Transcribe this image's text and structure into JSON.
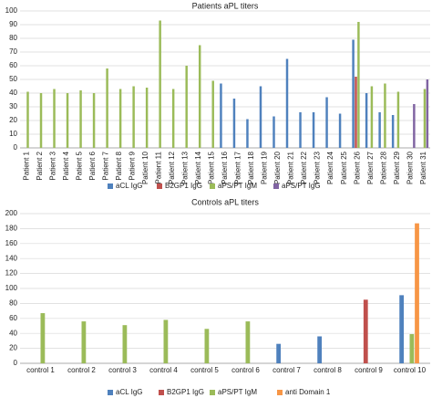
{
  "chart_data": [
    {
      "type": "bar",
      "title": "Patients aPL titers",
      "categories": [
        "Patient 1",
        "Patient 2",
        "Patient 3",
        "Patient 4",
        "Patient 5",
        "Patient 6",
        "Patient 7",
        "Patient 8",
        "Patient 9",
        "Patient 10",
        "Patient 11",
        "Patient 12",
        "Patient 13",
        "Patient 14",
        "Patient 15",
        "Patient 16",
        "Patient 17",
        "Patient 18",
        "Patient 19",
        "Patient 20",
        "Patient 21",
        "Patient 22",
        "Patient 23",
        "Patient 24",
        "Patient 25",
        "Patient 26",
        "Patient 27",
        "Patient 28",
        "Patient 29",
        "Patient 30",
        "Patient 31"
      ],
      "series": [
        {
          "name": "aCL IgG",
          "color": "#4f81bd",
          "values": [
            null,
            null,
            null,
            null,
            null,
            null,
            null,
            null,
            null,
            null,
            null,
            null,
            null,
            null,
            null,
            47,
            36,
            21,
            45,
            23,
            65,
            26,
            26,
            37,
            25,
            79,
            40,
            26,
            24,
            null,
            null
          ]
        },
        {
          "name": "B2GP1 IgG",
          "color": "#c0504d",
          "values": [
            null,
            null,
            null,
            null,
            null,
            null,
            null,
            null,
            null,
            null,
            null,
            null,
            null,
            null,
            null,
            null,
            null,
            null,
            null,
            null,
            null,
            null,
            null,
            null,
            null,
            52,
            null,
            null,
            null,
            null,
            null
          ]
        },
        {
          "name": "aPS/PT IgM",
          "color": "#9bbb59",
          "values": [
            41,
            40,
            43,
            40,
            42,
            40,
            58,
            43,
            45,
            44,
            93,
            43,
            60,
            75,
            49,
            null,
            null,
            null,
            null,
            null,
            null,
            null,
            null,
            null,
            null,
            92,
            45,
            47,
            41,
            null,
            43
          ]
        },
        {
          "name": "aPS/PT IgG",
          "color": "#8064a2",
          "values": [
            null,
            null,
            null,
            null,
            null,
            null,
            null,
            null,
            null,
            null,
            null,
            null,
            null,
            null,
            null,
            null,
            null,
            null,
            null,
            null,
            null,
            null,
            null,
            null,
            null,
            null,
            null,
            null,
            null,
            32,
            50
          ]
        }
      ],
      "ylim": [
        0,
        100
      ],
      "yticks": [
        0,
        10,
        20,
        30,
        40,
        50,
        60,
        70,
        80,
        90,
        100
      ],
      "grid": true,
      "legend": "bottom"
    },
    {
      "type": "bar",
      "title": "Controls aPL  titers",
      "categories": [
        "control 1",
        "control 2",
        "control 3",
        "control 4",
        "control 5",
        "control 6",
        "control 7",
        "control 8",
        "control 9",
        "control 10"
      ],
      "series": [
        {
          "name": "aCL IgG",
          "color": "#4f81bd",
          "values": [
            null,
            null,
            null,
            null,
            null,
            null,
            26,
            36,
            null,
            91
          ]
        },
        {
          "name": "B2GP1 IgG",
          "color": "#c0504d",
          "values": [
            null,
            null,
            null,
            null,
            null,
            null,
            null,
            null,
            85,
            null
          ]
        },
        {
          "name": "aPS/PT IgM",
          "color": "#9bbb59",
          "values": [
            67,
            56,
            51,
            58,
            46,
            56,
            null,
            null,
            null,
            39
          ]
        },
        {
          "name": "anti Domain 1",
          "color": "#f79646",
          "values": [
            null,
            null,
            null,
            null,
            null,
            null,
            null,
            null,
            null,
            187
          ]
        }
      ],
      "ylim": [
        0,
        200
      ],
      "yticks": [
        0,
        20,
        40,
        60,
        80,
        100,
        120,
        140,
        160,
        180,
        200
      ],
      "grid": true,
      "legend": "bottom"
    }
  ]
}
